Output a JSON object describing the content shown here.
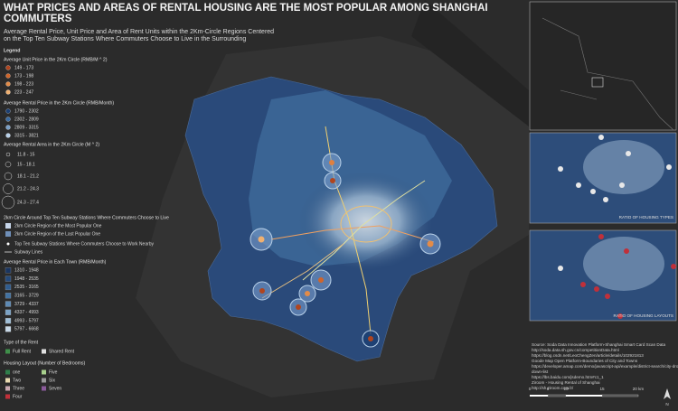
{
  "header": {
    "title_lines": [
      "WHAT PRICES AND AREAS OF RENTAL HOUSING ARE THE MOST POPULAR AMONG SHANGHAI",
      "COMMUTERS"
    ],
    "subtitle_lines": [
      "Average Rental Price, Unit Price and Area of Rent Units within the 2Km-Circle Regions Centered",
      "on the Top Ten Subway Stations Where Commuters Choose to Live in the Surrounding"
    ]
  },
  "legend": {
    "title": "Legend",
    "sections": [
      {
        "title": "Average Unit Price in the 2Km Circle (RMB/M ^ 2)",
        "items": [
          "149 - 173",
          "173 - 198",
          "198 - 223",
          "223 - 247"
        ]
      },
      {
        "title": "Average Rental Price in the 2Km Circle (RMB/Month)",
        "items": [
          "1790 - 2302",
          "2302 - 2809",
          "2809 - 3315",
          "3315 - 3821"
        ]
      },
      {
        "title": "Average Rental Area in the 2Km Circle (M ^ 2)",
        "items": [
          "11.8 - 15",
          "15 - 18.1",
          "18.1 - 21.2",
          "21.2 - 24.3",
          "24.3 - 27.4"
        ]
      },
      {
        "title": "2km Circle Around Top Ten Subway Stations Where Commuters Choose to Live",
        "items": [
          "2km Circle Region of the Most Popular One",
          "2km Circle Region of the Last Popular One"
        ]
      },
      {
        "title": null,
        "items": [
          "Top Ten Subway Stations Where Commuters Choose to Work Nearby",
          "Subway Lines"
        ]
      },
      {
        "title": "Average Rental Price in Each Town (RMB/Month)",
        "items": [
          "1310 - 1948",
          "1948 - 2535",
          "2535 - 3165",
          "3165 - 3729",
          "3729 - 4337",
          "4337 - 4993",
          "4993 - 5797",
          "5797 - 6668"
        ]
      },
      {
        "title": "Type of the Rent",
        "items": [
          "Full Rent",
          "Shared Rent"
        ]
      },
      {
        "title": "Housing Layout (Number of Bedrooms)",
        "items": [
          "one",
          "Five",
          "Two",
          "Six",
          "Three",
          "Seven",
          "Four"
        ]
      }
    ]
  },
  "insets": {
    "types_label": "RATIO OF HOUSING TYPES",
    "layouts_label": "RATIO OF HOUSING LAYOUTS"
  },
  "sources": [
    "Source: Soda Data Innovation Platform-Shanghai Smart Card Scan Data",
    "http://soda.data.sh.gov.cn/competitionData.html",
    "https://blog.csdn.net/LeoChengZen/article/details/102921813",
    "Goode Map Open Platform-Boundaries of City and Towns",
    "https://developer.amap.com/demo/javascript-api/example/district-search/city-drop-",
    "down-list",
    "https://lbs.baidu.com/jsdemo.htm#c1_1",
    "Ziroom - Housing Rental of Shanghai",
    "http://sh.ziroom.com/z/"
  ],
  "scale": {
    "labels": [
      "0",
      "5",
      "10",
      "15",
      "20 km"
    ]
  },
  "north": "N"
}
